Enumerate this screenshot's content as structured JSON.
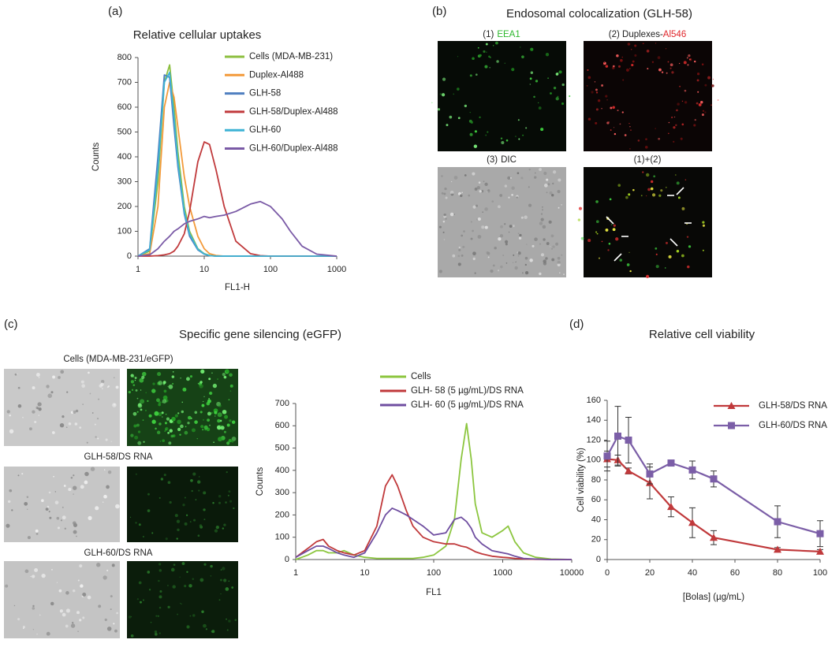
{
  "chart_data": [
    {
      "type": "line",
      "panel_label": "(a)",
      "title": "Relative cellular uptakes",
      "x_label": "FL1-H",
      "y_label": "Counts",
      "xscale": "log",
      "x": [
        1,
        1.5,
        2,
        2.5,
        3,
        3.5,
        4,
        5,
        6,
        8,
        10,
        12,
        15,
        20,
        30,
        50,
        70,
        100,
        150,
        200,
        300,
        500,
        1000
      ],
      "xlim": [
        1,
        1000
      ],
      "xticks": [
        1,
        10,
        100,
        1000
      ],
      "ylim": [
        0,
        800
      ],
      "yticks": [
        0,
        100,
        200,
        300,
        400,
        500,
        600,
        700,
        800
      ],
      "legend": "upper right",
      "series": [
        {
          "name": "Cells (MDA-MB-231)",
          "color": "#8cbf3f",
          "values": [
            0,
            20,
            300,
            700,
            770,
            600,
            420,
            200,
            100,
            30,
            10,
            3,
            0,
            0,
            0,
            0,
            0,
            0,
            0,
            0,
            0,
            0,
            0
          ]
        },
        {
          "name": "Duplex-Al488",
          "color": "#f39a3a",
          "values": [
            0,
            10,
            200,
            600,
            700,
            640,
            520,
            320,
            200,
            80,
            30,
            10,
            3,
            0,
            0,
            0,
            0,
            0,
            0,
            0,
            0,
            0,
            0
          ]
        },
        {
          "name": "GLH-58",
          "color": "#4f7fc0",
          "values": [
            0,
            30,
            400,
            730,
            720,
            520,
            360,
            170,
            80,
            25,
            8,
            2,
            0,
            0,
            0,
            0,
            0,
            0,
            0,
            0,
            0,
            0,
            0
          ]
        },
        {
          "name": "GLH-58/Duplex-Al488",
          "color": "#c0393b",
          "values": [
            0,
            0,
            2,
            5,
            10,
            20,
            40,
            90,
            180,
            380,
            460,
            450,
            350,
            200,
            60,
            10,
            2,
            0,
            0,
            0,
            0,
            0,
            0
          ]
        },
        {
          "name": "GLH-60",
          "color": "#3eb3d5",
          "values": [
            0,
            25,
            350,
            700,
            740,
            560,
            380,
            180,
            90,
            28,
            9,
            2,
            0,
            0,
            0,
            0,
            0,
            0,
            0,
            0,
            0,
            0,
            0
          ]
        },
        {
          "name": "GLH-60/Duplex-Al488",
          "color": "#7a5aa6",
          "values": [
            0,
            5,
            30,
            60,
            80,
            100,
            110,
            130,
            140,
            150,
            160,
            155,
            160,
            165,
            180,
            210,
            220,
            200,
            150,
            100,
            40,
            8,
            0
          ]
        }
      ]
    },
    {
      "type": "line",
      "x_label": "FL1",
      "y_label": "Counts",
      "xscale": "log",
      "x": [
        1,
        1.5,
        2,
        2.5,
        3,
        4,
        5,
        7,
        10,
        15,
        20,
        25,
        30,
        40,
        50,
        70,
        100,
        150,
        200,
        250,
        300,
        350,
        400,
        500,
        700,
        1000,
        1200,
        1500,
        2000,
        3000,
        5000,
        10000
      ],
      "xlim": [
        1,
        10000
      ],
      "xticks": [
        1,
        10,
        100,
        1000,
        10000
      ],
      "ylim": [
        0,
        700
      ],
      "yticks": [
        0,
        100,
        200,
        300,
        400,
        500,
        600,
        700
      ],
      "legend": "upper center",
      "series": [
        {
          "name": "Cells",
          "color": "#8cc63f",
          "values": [
            0,
            20,
            40,
            40,
            30,
            30,
            40,
            20,
            10,
            5,
            5,
            5,
            5,
            5,
            5,
            10,
            20,
            60,
            180,
            450,
            610,
            450,
            250,
            120,
            100,
            130,
            150,
            80,
            30,
            10,
            2,
            0
          ]
        },
        {
          "name": "GLH- 58 (5 µg/mL)/DS RNA",
          "color": "#c0393b",
          "values": [
            10,
            50,
            80,
            90,
            60,
            40,
            30,
            20,
            40,
            150,
            330,
            380,
            330,
            220,
            150,
            100,
            80,
            70,
            70,
            60,
            55,
            45,
            35,
            25,
            15,
            10,
            8,
            5,
            3,
            1,
            0,
            0
          ]
        },
        {
          "name": "GLH- 60 (5 µg/mL)/DS RNA",
          "color": "#6f4ea0",
          "values": [
            10,
            40,
            60,
            60,
            50,
            30,
            20,
            10,
            30,
            120,
            200,
            230,
            220,
            200,
            180,
            150,
            110,
            120,
            180,
            190,
            170,
            140,
            100,
            70,
            40,
            30,
            25,
            15,
            5,
            2,
            0,
            0
          ]
        }
      ]
    },
    {
      "type": "line",
      "panel_label": "(d)",
      "title": "Relative cell viability",
      "x_label": "[Bolas] (µg/mL)",
      "y_label": "Cell viability (%)",
      "xscale": "linear",
      "x": [
        0,
        5,
        10,
        20,
        30,
        40,
        50,
        80,
        100
      ],
      "xlim": [
        0,
        100
      ],
      "xticks": [
        0,
        20,
        40,
        60,
        80,
        100
      ],
      "ylim": [
        0,
        160
      ],
      "yticks": [
        0,
        20,
        40,
        60,
        80,
        100,
        120,
        140,
        160
      ],
      "legend": "upper right",
      "series": [
        {
          "name": "GLH-58/DS RNA",
          "color": "#c0393b",
          "marker": "triangle",
          "values": [
            101,
            100,
            89,
            77,
            53,
            37,
            22,
            10,
            8
          ],
          "errors": [
            8,
            5,
            3,
            16,
            10,
            15,
            7,
            2,
            2
          ]
        },
        {
          "name": "GLH-60/DS RNA",
          "color": "#7b5ea7",
          "marker": "square",
          "values": [
            104,
            124,
            120,
            86,
            97,
            90,
            81,
            38,
            26
          ],
          "errors": [
            15,
            30,
            23,
            10,
            2,
            9,
            8,
            16,
            13
          ]
        }
      ]
    }
  ],
  "micrographs_b": {
    "panel_label": "(b)",
    "title": "Endosomal colocalization (GLH-58)",
    "captions": [
      {
        "prefix": "(1)",
        "text": "EEA1"
      },
      {
        "prefix": "(2) Duplexes-",
        "text": "Al546"
      },
      {
        "prefix": "(3)",
        "text": "DIC"
      },
      {
        "prefix": "(1)+(2)"
      }
    ]
  },
  "micrographs_c": {
    "panel_label": "(c)",
    "title": "Specific gene silencing (eGFP)",
    "captions": [
      "Cells (MDA-MB-231/eGFP)",
      "GLH-58/DS RNA",
      "GLH-60/DS RNA"
    ]
  }
}
